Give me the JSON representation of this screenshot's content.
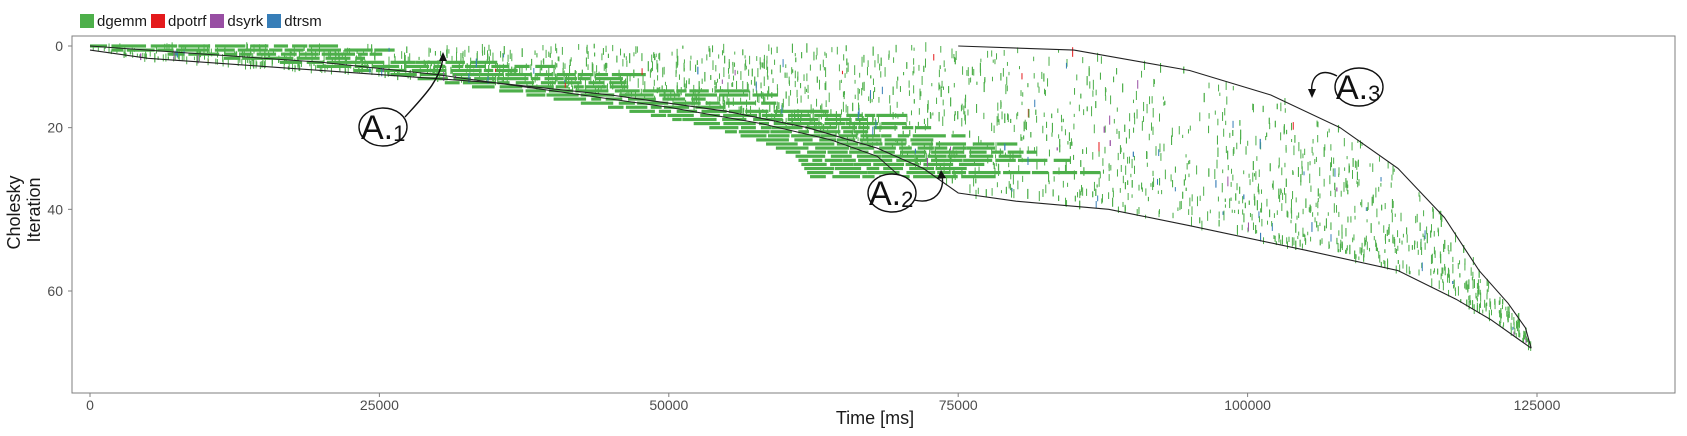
{
  "legend": [
    {
      "label": "dgemm",
      "color": "#4daf4a"
    },
    {
      "label": "dpotrf",
      "color": "#e41a1c"
    },
    {
      "label": "dsyrk",
      "color": "#984ea3"
    },
    {
      "label": "dtrsm",
      "color": "#377eb8"
    }
  ],
  "annotations": [
    {
      "main": "A.",
      "sub": "1"
    },
    {
      "main": "A.",
      "sub": "2"
    },
    {
      "main": "A.",
      "sub": "3"
    }
  ],
  "chart_data": {
    "type": "scatter",
    "title": "",
    "xlabel": "Time [ms]",
    "ylabel": "Cholesky\nIteration",
    "ylabel_lines": [
      "Cholesky",
      "Iteration"
    ],
    "xlim": [
      -2000,
      126500
    ],
    "ylim": [
      80,
      -2
    ],
    "y_reversed": true,
    "x_ticks": [
      0,
      25000,
      50000,
      75000,
      100000,
      125000
    ],
    "x_tick_labels": [
      "0",
      "25000",
      "50000",
      "75000",
      "100000",
      "125000"
    ],
    "y_ticks": [
      0,
      20,
      40,
      60
    ],
    "y_tick_labels": [
      "0",
      "20",
      "40",
      "60"
    ],
    "grid": false,
    "legend_position": "top-left",
    "series": [
      {
        "name": "dgemm",
        "color": "#4daf4a"
      },
      {
        "name": "dpotrf",
        "color": "#e41a1c"
      },
      {
        "name": "dsyrk",
        "color": "#984ea3"
      },
      {
        "name": "dtrsm",
        "color": "#377eb8"
      }
    ],
    "envelope_lower": {
      "x": [
        0,
        5000,
        15000,
        25000,
        35000,
        45000,
        55000,
        62000,
        68000,
        72000,
        75000,
        80000,
        88000,
        95000,
        105000,
        113000,
        118000,
        121000,
        123500,
        124500
      ],
      "y": [
        1,
        3,
        5,
        7,
        9,
        12,
        16,
        20,
        25,
        30,
        36,
        38,
        40,
        44,
        50,
        55,
        62,
        67,
        72,
        74
      ]
    },
    "envelope_upper": {
      "x": [
        75000,
        85000,
        95000,
        102000,
        108000,
        113000,
        117000,
        120000,
        122500,
        124000,
        124500
      ],
      "y": [
        0,
        1,
        6,
        12,
        20,
        30,
        42,
        55,
        63,
        69,
        74
      ]
    },
    "front": {
      "x": [
        0,
        10000,
        20000,
        30000,
        40000,
        50000,
        58000,
        64000,
        68000,
        70000
      ],
      "y": [
        0,
        2,
        4,
        7,
        11,
        15,
        19,
        23,
        27,
        32
      ]
    },
    "points": {
      "dgemm": "dense band of task bars between envelope curves; green",
      "dtrsm": "sparse blue marks mixed within dgemm band",
      "dsyrk": "sparse purple marks",
      "dpotrf": "few red marks along diagonal"
    }
  }
}
